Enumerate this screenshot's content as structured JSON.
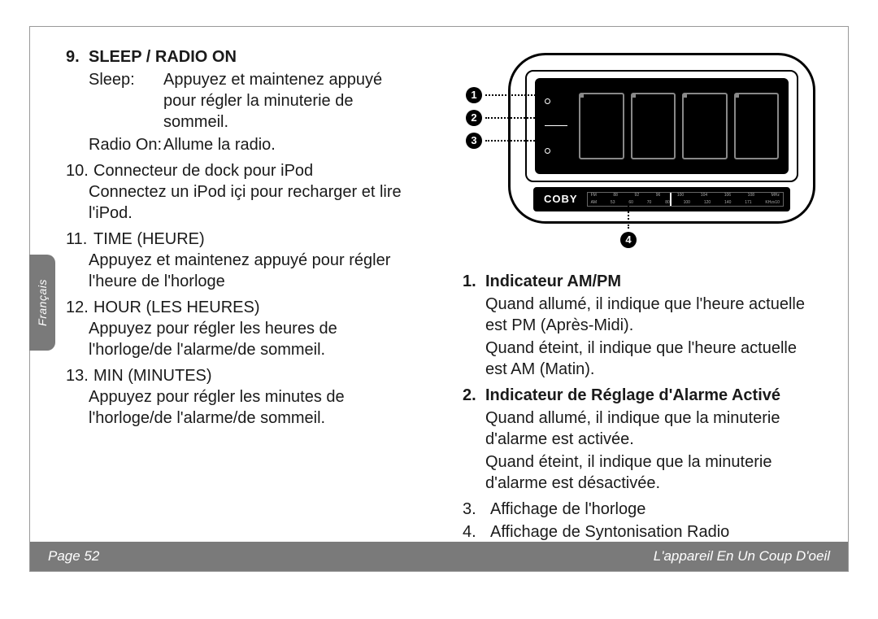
{
  "left": {
    "section9": {
      "num": "9.",
      "title": "SLEEP / RADIO ON",
      "sleep_label": "Sleep:",
      "sleep_text": "Appuyez et maintenez appuyé pour régler la minuterie de sommeil.",
      "radio_label": "Radio On:",
      "radio_text": "Allume la radio."
    },
    "item10": {
      "num": "10.",
      "title": "Connecteur de dock pour iPod",
      "body": "Connectez un iPod içi pour recharger et lire l'iPod."
    },
    "item11": {
      "num": "11.",
      "title": "TIME (HEURE)",
      "body": "Appuyez et maintenez appuyé pour régler l'heure de l'horloge"
    },
    "item12": {
      "num": "12.",
      "title": "HOUR (LES HEURES)",
      "body": "Appuyez pour régler les heures de l'horloge/de l'alarme/de sommeil."
    },
    "item13": {
      "num": "13.",
      "title": "MIN (MINUTES)",
      "body": "Appuyez pour régler les minutes de l'horloge/de l'alarme/de sommeil."
    }
  },
  "right": {
    "brand": "COBY",
    "tuner_fm": {
      "label": "FM",
      "vals": [
        "88",
        "92",
        "96",
        "100",
        "104",
        "106",
        "108",
        "MHz"
      ]
    },
    "tuner_am": {
      "label": "AM",
      "vals": [
        "53",
        "60",
        "70",
        "80",
        "100",
        "120",
        "140",
        "171",
        "KHzx10"
      ]
    },
    "callouts": {
      "c1": "1",
      "c2": "2",
      "c3": "3",
      "c4": "4"
    },
    "item1": {
      "num": "1.",
      "title": "Indicateur AM/PM",
      "line1": "Quand allumé, il indique que l'heure actuelle est PM (Après-Midi).",
      "line2": "Quand éteint, il indique que l'heure actuelle est AM (Matin)."
    },
    "item2": {
      "num": "2.",
      "title": "Indicateur de Réglage d'Alarme Activé",
      "line1": "Quand allumé, il indique que la minuterie d'alarme est activée.",
      "line2": "Quand éteint, il indique que la minuterie d'alarme est désactivée."
    },
    "item3": {
      "num": "3.",
      "text": "Affichage de l'horloge"
    },
    "item4": {
      "num": "4.",
      "text": "Affichage de Syntonisation Radio"
    }
  },
  "sidebar": {
    "lang": "Français"
  },
  "footer": {
    "page": "Page 52",
    "section": "L'appareil En Un Coup D'oeil"
  }
}
